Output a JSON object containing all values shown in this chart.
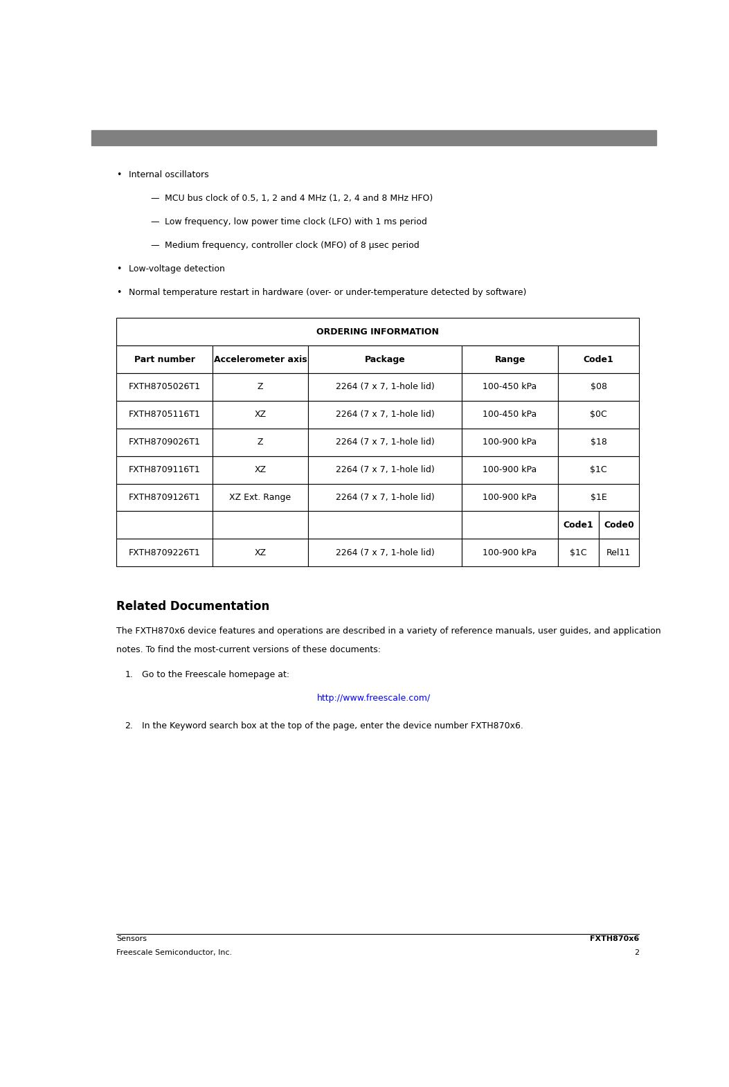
{
  "header_bar_color": "#808080",
  "bg_color": "#ffffff",
  "page_width": 10.53,
  "page_height": 15.7,
  "bullet_items": [
    {
      "level": 0,
      "text": "Internal oscillators"
    },
    {
      "level": 1,
      "text": "MCU bus clock of 0.5, 1, 2 and 4 MHz (1, 2, 4 and 8 MHz HFO)"
    },
    {
      "level": 1,
      "text": "Low frequency, low power time clock (LFO) with 1 ms period"
    },
    {
      "level": 1,
      "text": "Medium frequency, controller clock (MFO) of 8 μsec period"
    },
    {
      "level": 0,
      "text": "Low-voltage detection"
    },
    {
      "level": 0,
      "text": "Normal temperature restart in hardware (over- or under-temperature detected by software)"
    }
  ],
  "table_title": "ORDERING INFORMATION",
  "table_headers": [
    "Part number",
    "Accelerometer axis",
    "Package",
    "Range",
    "Code1"
  ],
  "table_rows": [
    [
      "FXTH8705026T1",
      "Z",
      "2264 (7 x 7, 1-hole lid)",
      "100-450 kPa",
      "$08"
    ],
    [
      "FXTH8705116T1",
      "XZ",
      "2264 (7 x 7, 1-hole lid)",
      "100-450 kPa",
      "$0C"
    ],
    [
      "FXTH8709026T1",
      "Z",
      "2264 (7 x 7, 1-hole lid)",
      "100-900 kPa",
      "$18"
    ],
    [
      "FXTH8709116T1",
      "XZ",
      "2264 (7 x 7, 1-hole lid)",
      "100-900 kPa",
      "$1C"
    ],
    [
      "FXTH8709126T1",
      "XZ Ext. Range",
      "2264 (7 x 7, 1-hole lid)",
      "100-900 kPa",
      "$1E"
    ]
  ],
  "table_extra_header": [
    "Code1",
    "Code0"
  ],
  "table_last_row": [
    "FXTH8709226T1",
    "XZ",
    "2264 (7 x 7, 1-hole lid)",
    "100-900 kPa",
    "$1C",
    "Rel11"
  ],
  "section_title": "Related Documentation",
  "section_body1": "The FXTH870x6 device features and operations are described in a variety of reference manuals, user guides, and application",
  "section_body2": "notes. To find the most-current versions of these documents:",
  "list_item1": "Go to the Freescale homepage at:",
  "list_item2": "In the Keyword search box at the top of the page, enter the device number FXTH870x6.",
  "link_text": "http://www.freescale.com/",
  "link_color": "#0000FF",
  "footer_left1": "Sensors",
  "footer_left2": "Freescale Semiconductor, Inc.",
  "footer_right": "FXTH870x6",
  "footer_page": "2",
  "font_size_body": 9,
  "font_size_section": 12,
  "font_size_table_title": 9,
  "font_size_footer": 8
}
